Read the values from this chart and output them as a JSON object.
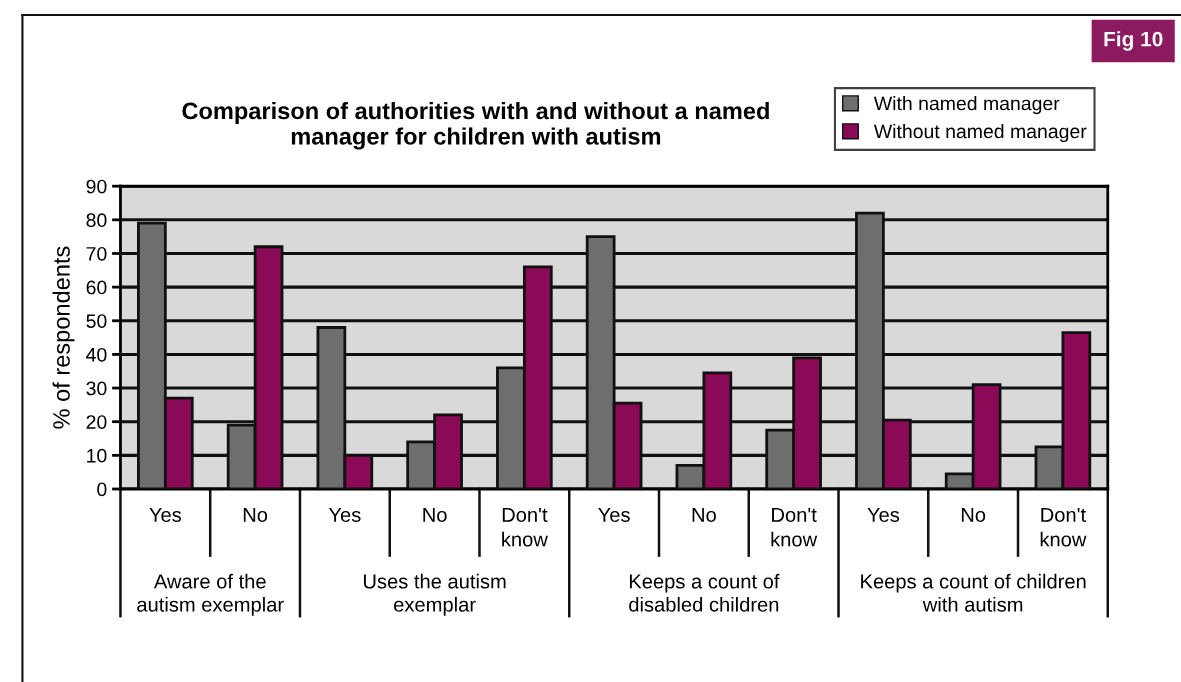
{
  "chart_data": {
    "type": "bar",
    "title": "Comparison of authorities with and without a named\nmanager for children with autism",
    "ylabel": "% of respondents",
    "categories": [
      "Yes",
      "No",
      "Yes",
      "No",
      "Don't\nknow",
      "Yes",
      "No",
      "Don't\nknow",
      "Yes",
      "No",
      "Don't\nknow"
    ],
    "series": [
      {
        "name": "With named manager",
        "color": "#6e6e6e",
        "values": [
          79,
          19,
          48,
          14,
          36,
          75,
          7,
          17.5,
          82,
          4.5,
          12.5
        ]
      },
      {
        "name": "Without named manager",
        "color": "#8b0a57",
        "values": [
          27,
          72,
          10,
          22,
          66,
          25.5,
          34.5,
          39,
          20.5,
          31,
          46.5
        ]
      }
    ],
    "ylim": [
      0,
      90
    ],
    "yticks": [
      0,
      10,
      20,
      30,
      40,
      50,
      60,
      70,
      80,
      90
    ],
    "grid": "y",
    "legend": "top right",
    "annotations": [
      "Aware of the\nautism exemplar",
      "Uses the autism\nexemplar",
      "Keeps a count of\ndisabled children",
      "Keeps a count of children\nwith autism",
      "Fig 10"
    ]
  }
}
